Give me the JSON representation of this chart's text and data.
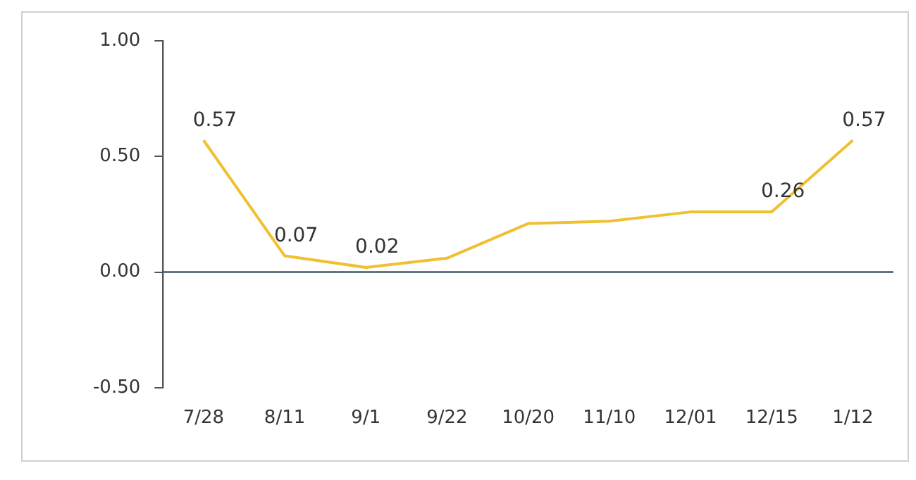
{
  "chart_data": {
    "type": "line",
    "categories": [
      "7/28",
      "8/11",
      "9/1",
      "9/22",
      "10/20",
      "11/10",
      "12/01",
      "12/15",
      "1/12"
    ],
    "series": [
      {
        "color": "#f0c030",
        "values": [
          0.57,
          0.07,
          0.02,
          0.06,
          0.21,
          0.22,
          0.26,
          0.26,
          0.57
        ],
        "value_labels": [
          "0.57",
          "0.07",
          "0.02",
          null,
          null,
          null,
          null,
          "0.26",
          "0.57"
        ]
      }
    ],
    "ylim": [
      -0.5,
      1.0
    ],
    "yticks": [
      {
        "value": -0.5,
        "label": "-0.50"
      },
      {
        "value": 0,
        "label": "0.00"
      },
      {
        "value": 0.5,
        "label": "0.50"
      },
      {
        "value": 1.0,
        "label": "1.00"
      }
    ],
    "ref_lines": [
      {
        "axis": "y",
        "value": 0,
        "color": "#3d5a6b"
      }
    ],
    "grid": false,
    "legend": false,
    "marker": "none",
    "line_style": "solid"
  }
}
